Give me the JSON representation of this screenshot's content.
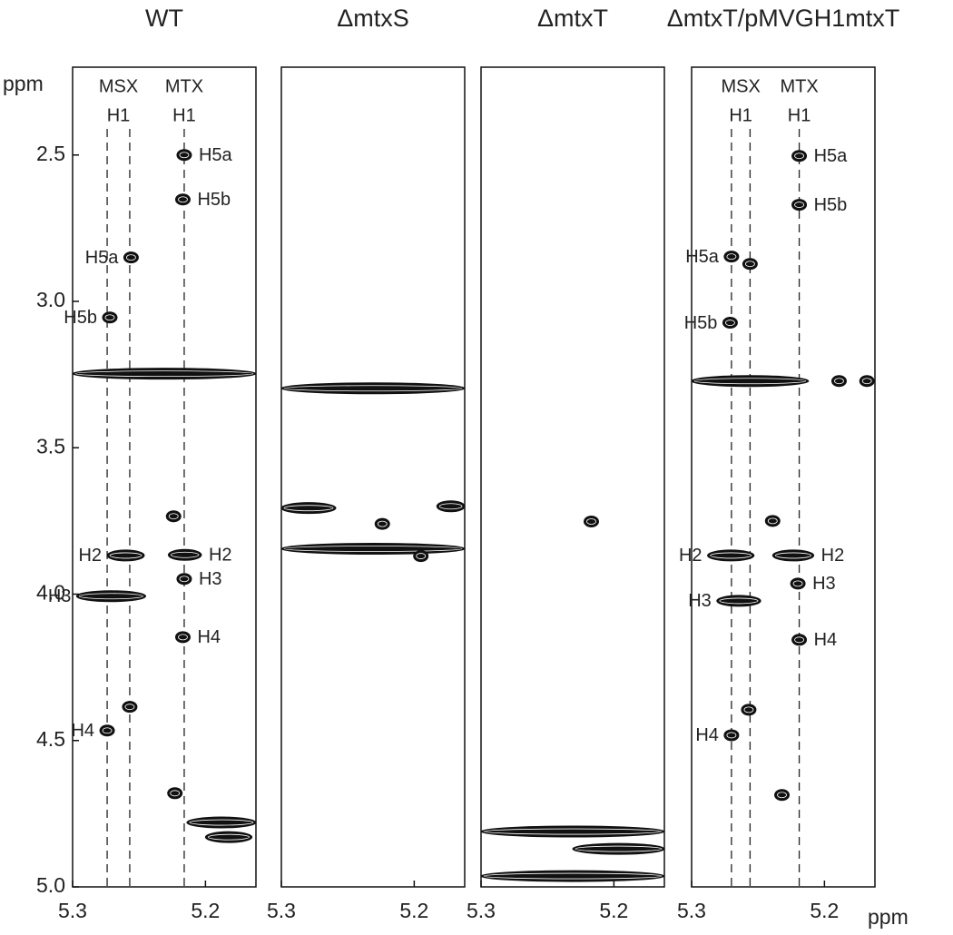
{
  "chart_data": [
    {
      "type": "contour",
      "title": "WT",
      "xlim": [
        5.3,
        5.162
      ],
      "xticks": [
        5.3,
        5.2
      ],
      "ylim": [
        2.2,
        5.0
      ],
      "yticks": [
        2.5,
        {
          "value": 3,
          "label": "3.0"
        },
        3.5,
        {
          "value": 4,
          "label": "4.0"
        },
        4.5,
        {
          "value": 5,
          "label": "5.0"
        }
      ],
      "ylabel": "ppm",
      "guides": [
        {
          "label": "MSX",
          "sublabel": "H1",
          "x": [
            5.274,
            5.257
          ]
        },
        {
          "label": "MTX",
          "sublabel": "H1",
          "x": [
            5.216
          ]
        }
      ],
      "peaks": [
        {
          "x": 5.216,
          "y": 2.5,
          "label": "H5a",
          "label_side": "right"
        },
        {
          "x": 5.217,
          "y": 2.652,
          "label": "H5b",
          "label_side": "right"
        },
        {
          "x": 5.256,
          "y": 2.85,
          "label": "H5a",
          "label_side": "left"
        },
        {
          "x": 5.272,
          "y": 3.055,
          "label": "H5b",
          "label_side": "left"
        },
        {
          "x": [
            5.3,
            5.162
          ],
          "y": 3.247
        },
        {
          "x": 5.224,
          "y": 3.734
        },
        {
          "x": [
            5.274,
            5.246
          ],
          "y": 3.868,
          "label": "H2",
          "label_side": "left"
        },
        {
          "x": [
            5.228,
            5.203
          ],
          "y": 3.866,
          "label": "H2",
          "label_side": "right"
        },
        {
          "x": 5.216,
          "y": 3.948,
          "label": "H3",
          "label_side": "right"
        },
        {
          "x": [
            5.297,
            5.245
          ],
          "y": 4.007,
          "label": "H3",
          "label_side": "left"
        },
        {
          "x": 5.217,
          "y": 4.147,
          "label": "H4",
          "label_side": "right"
        },
        {
          "x": 5.257,
          "y": 4.385
        },
        {
          "x": 5.274,
          "y": 4.466,
          "label": "H4",
          "label_side": "left"
        },
        {
          "x": 5.223,
          "y": 4.68
        },
        {
          "x": [
            5.214,
            5.162
          ],
          "y": 4.78
        },
        {
          "x": [
            5.2,
            5.165
          ],
          "y": 4.83
        }
      ]
    },
    {
      "type": "contour",
      "title": "ΔmtxS",
      "xlim": [
        5.3,
        5.162
      ],
      "xticks": [
        5.3,
        5.2
      ],
      "ylim": [
        2.2,
        5.0
      ],
      "peaks": [
        {
          "x": [
            5.3,
            5.162
          ],
          "y": 3.297
        },
        {
          "x": [
            5.3,
            5.259
          ],
          "y": 3.706
        },
        {
          "x": 5.224,
          "y": 3.76
        },
        {
          "x": [
            5.183,
            5.162
          ],
          "y": 3.7
        },
        {
          "x": [
            5.3,
            5.162
          ],
          "y": 3.845
        },
        {
          "x": 5.195,
          "y": 3.87
        }
      ]
    },
    {
      "type": "contour",
      "title": "ΔmtxT",
      "xlim": [
        5.3,
        5.162
      ],
      "xticks": [
        5.3,
        5.2
      ],
      "ylim": [
        2.2,
        5.0
      ],
      "peaks": [
        {
          "x": 5.217,
          "y": 3.752
        },
        {
          "x": [
            5.3,
            5.162
          ],
          "y": 4.811
        },
        {
          "x": [
            5.231,
            5.162
          ],
          "y": 4.87
        },
        {
          "x": [
            5.3,
            5.162
          ],
          "y": 4.963
        }
      ]
    },
    {
      "type": "contour",
      "title": "ΔmtxT/pMVGH1mtxT",
      "xlim": [
        5.3,
        5.162
      ],
      "xticks": [
        5.3,
        5.2
      ],
      "ylim": [
        2.2,
        5.0
      ],
      "xlabel": "ppm",
      "guides": [
        {
          "label": "MSX",
          "sublabel": "H1",
          "x": [
            5.27,
            5.256
          ]
        },
        {
          "label": "MTX",
          "sublabel": "H1",
          "x": [
            5.219
          ]
        }
      ],
      "peaks": [
        {
          "x": 5.219,
          "y": 2.503,
          "label": "H5a",
          "label_side": "right"
        },
        {
          "x": 5.219,
          "y": 2.67,
          "label": "H5b",
          "label_side": "right"
        },
        {
          "x": 5.27,
          "y": 2.847,
          "label": "H5a",
          "label_side": "left"
        },
        {
          "x": 5.256,
          "y": 2.872
        },
        {
          "x": 5.271,
          "y": 3.073,
          "label": "H5b",
          "label_side": "left"
        },
        {
          "x": [
            5.3,
            5.212
          ],
          "y": 3.272
        },
        {
          "x": 5.189,
          "y": 3.272
        },
        {
          "x": 5.168,
          "y": 3.272
        },
        {
          "x": 5.239,
          "y": 3.75
        },
        {
          "x": [
            5.288,
            5.253
          ],
          "y": 3.868,
          "label": "H2",
          "label_side": "left"
        },
        {
          "x": [
            5.239,
            5.208
          ],
          "y": 3.868,
          "label": "H2",
          "label_side": "right"
        },
        {
          "x": 5.22,
          "y": 3.964,
          "label": "H3",
          "label_side": "right"
        },
        {
          "x": [
            5.281,
            5.248
          ],
          "y": 4.023,
          "label": "H3",
          "label_side": "left"
        },
        {
          "x": 5.219,
          "y": 4.156,
          "label": "H4",
          "label_side": "right"
        },
        {
          "x": 5.257,
          "y": 4.395
        },
        {
          "x": 5.27,
          "y": 4.482,
          "label": "H4",
          "label_side": "left"
        },
        {
          "x": 5.232,
          "y": 4.686
        }
      ]
    }
  ]
}
